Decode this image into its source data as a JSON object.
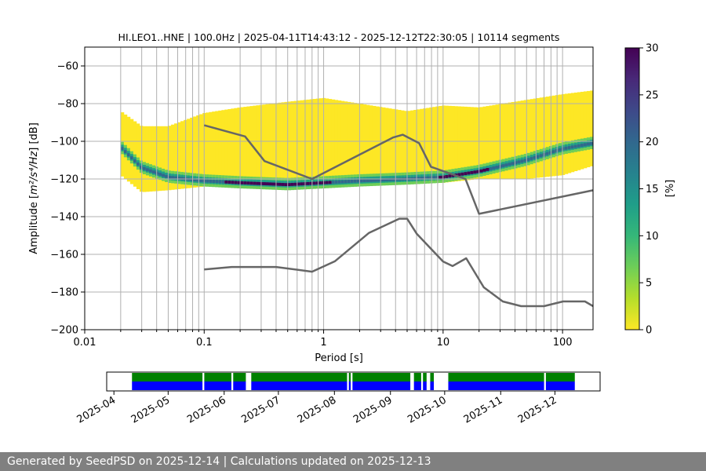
{
  "chart_data": {
    "type": "heatmap",
    "title": "HI.LEO1..HNE | 100.0Hz | 2025-04-11T14:43:12 - 2025-12-12T22:30:05 | 10114 segments",
    "xlabel": "Period [s]",
    "ylabel_prefix": "Amplitude [",
    "ylabel_unit": "m²/s⁴/Hz",
    "ylabel_suffix": "] [dB]",
    "x_scale": "log",
    "xlim": [
      0.01,
      180
    ],
    "ylim": [
      -200,
      -50
    ],
    "grid": true,
    "x_ticks": [
      {
        "value": 0.01,
        "label": "0.01"
      },
      {
        "value": 0.1,
        "label": "0.1"
      },
      {
        "value": 1,
        "label": "1"
      },
      {
        "value": 10,
        "label": "10"
      },
      {
        "value": 100,
        "label": "100"
      }
    ],
    "y_ticks": [
      {
        "value": -60,
        "label": "−60"
      },
      {
        "value": -80,
        "label": "−80"
      },
      {
        "value": -100,
        "label": "−100"
      },
      {
        "value": -120,
        "label": "−120"
      },
      {
        "value": -140,
        "label": "−140"
      },
      {
        "value": -160,
        "label": "−160"
      },
      {
        "value": -180,
        "label": "−180"
      },
      {
        "value": -200,
        "label": "−200"
      }
    ],
    "colorbar": {
      "label": "[%]",
      "range": [
        0,
        30
      ],
      "ticks": [
        {
          "value": 0,
          "label": "0"
        },
        {
          "value": 5,
          "label": "5"
        },
        {
          "value": 10,
          "label": "10"
        },
        {
          "value": 15,
          "label": "15"
        },
        {
          "value": 20,
          "label": "20"
        },
        {
          "value": 25,
          "label": "25"
        },
        {
          "value": 30,
          "label": "30"
        }
      ],
      "colormap": [
        "#fde725",
        "#b5de2b",
        "#6ece58",
        "#35b779",
        "#1f9e89",
        "#26828e",
        "#31688e",
        "#3e4989",
        "#482878",
        "#440154"
      ]
    },
    "psd_data_range": {
      "period": [
        0.02,
        0.03,
        0.05,
        0.1,
        0.2,
        0.5,
        1,
        2,
        5,
        10,
        20,
        50,
        100,
        180
      ],
      "low": [
        -118,
        -127,
        -126,
        -124,
        -123,
        -122,
        -122,
        -122,
        -121,
        -122,
        -120,
        -120,
        -118,
        -113
      ],
      "high": [
        -84,
        -92,
        -92,
        -85,
        -82,
        -79,
        -77,
        -80,
        -84,
        -81,
        -82,
        -78,
        -75,
        -73
      ]
    },
    "psd_mode": {
      "period": [
        0.02,
        0.03,
        0.05,
        0.1,
        0.2,
        0.5,
        1,
        2,
        5,
        10,
        20,
        50,
        100,
        180
      ],
      "db": [
        -103,
        -114,
        -119,
        -121,
        -122,
        -123,
        -122,
        -121,
        -120,
        -119,
        -116,
        -110,
        -104,
        -101
      ]
    },
    "nhnm": {
      "period": [
        0.1,
        0.22,
        0.32,
        0.8,
        3.8,
        4.6,
        6.3,
        7.9,
        15.4,
        20,
        354.8
      ],
      "db": [
        -91.5,
        -97.4,
        -110.5,
        -120,
        -98,
        -96.5,
        -101,
        -113.5,
        -120,
        -138.5,
        -126
      ]
    },
    "nlnm": {
      "period": [
        0.1,
        0.17,
        0.4,
        0.8,
        1.24,
        2.4,
        4.3,
        5,
        6,
        10,
        12,
        15.6,
        21.9,
        31.6,
        45,
        70,
        101,
        154,
        328
      ],
      "db": [
        -168,
        -166.7,
        -166.7,
        -169.2,
        -163.7,
        -148.6,
        -141.1,
        -141.1,
        -149,
        -163.8,
        -166.2,
        -162.1,
        -177.5,
        -185,
        -187.5,
        -187.5,
        -185,
        -185,
        -187.5
      ]
    },
    "coverage": {
      "date_ticks": [
        "2025-04",
        "2025-05",
        "2025-06",
        "2025-07",
        "2025-08",
        "2025-09",
        "2025-10",
        "2025-11",
        "2025-12"
      ],
      "range": [
        "2025-03-28",
        "2025-12-26"
      ],
      "segments": [
        [
          "2025-04-11",
          "2025-05-20"
        ],
        [
          "2025-05-21",
          "2025-06-05"
        ],
        [
          "2025-06-06",
          "2025-06-13"
        ],
        [
          "2025-06-16",
          "2025-08-08"
        ],
        [
          "2025-08-09",
          "2025-08-10"
        ],
        [
          "2025-08-11",
          "2025-09-12"
        ],
        [
          "2025-09-14",
          "2025-09-18"
        ],
        [
          "2025-09-19",
          "2025-09-21"
        ],
        [
          "2025-09-23",
          "2025-09-25"
        ],
        [
          "2025-10-03",
          "2025-11-25"
        ],
        [
          "2025-11-26",
          "2025-12-12"
        ]
      ],
      "top_color": "#008000",
      "bottom_color": "#0000ff"
    }
  },
  "footer": {
    "text": "Generated by SeedPSD on 2025-12-14 | Calculations updated on 2025-12-13"
  },
  "colors": {
    "noise_model_line": "#666666",
    "grid": "#b0b0b0"
  }
}
